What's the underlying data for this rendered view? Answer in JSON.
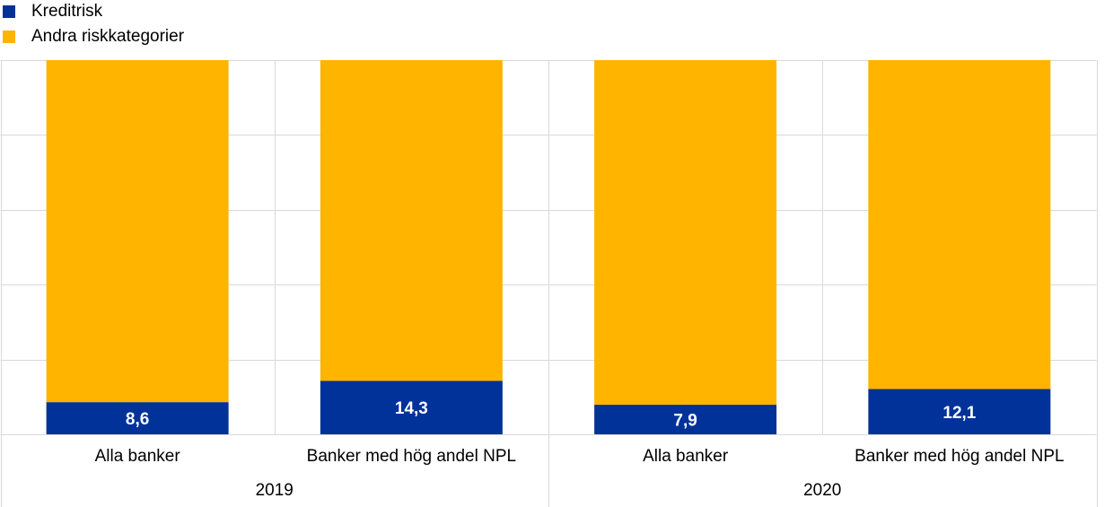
{
  "chart_data": {
    "type": "stacked_bar",
    "categories": [
      "Alla banker",
      "Banker med hög andel NPL",
      "Alla banker",
      "Banker med hög andel NPL"
    ],
    "groups": [
      "2019",
      "2020"
    ],
    "series": [
      {
        "name": "Kreditrisk",
        "color": "#003299",
        "values": [
          8.6,
          14.3,
          7.9,
          12.1
        ],
        "value_labels": [
          "8,6",
          "14,3",
          "7,9",
          "12,1"
        ]
      },
      {
        "name": "Andra riskkategorier",
        "color": "#ffb400",
        "values": [
          91.4,
          85.7,
          92.1,
          87.9
        ]
      }
    ],
    "ylim": [
      0,
      100
    ],
    "ygrid": [
      0,
      20,
      40,
      60,
      80,
      100
    ],
    "grid": true
  }
}
